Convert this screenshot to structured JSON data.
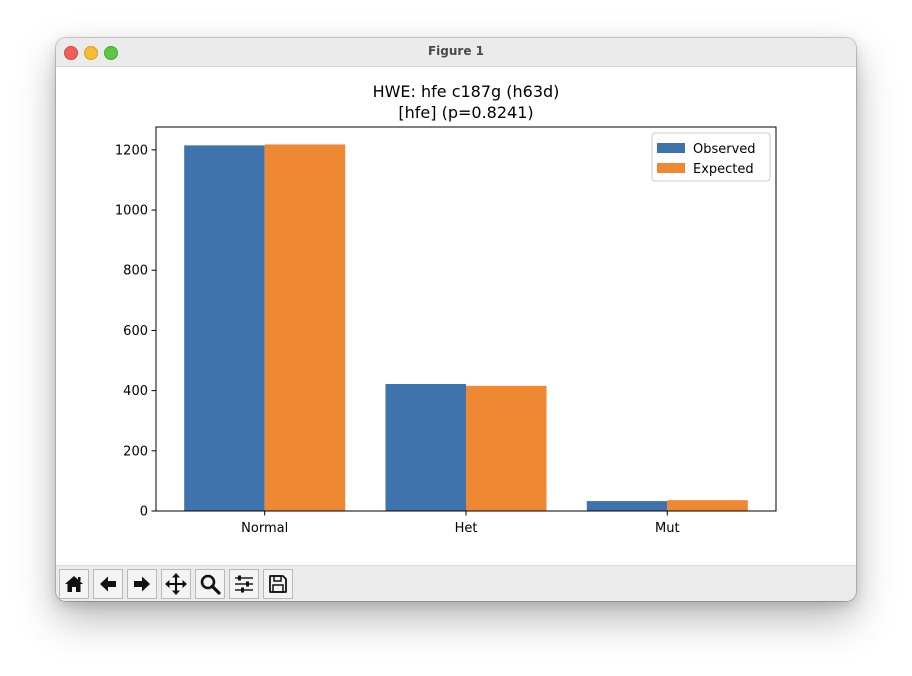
{
  "window": {
    "title": "Figure 1"
  },
  "toolbar": {
    "buttons": [
      {
        "name": "home",
        "icon": "home-icon"
      },
      {
        "name": "back",
        "icon": "arrow-left-icon"
      },
      {
        "name": "forward",
        "icon": "arrow-right-icon"
      },
      {
        "name": "pan",
        "icon": "move-icon"
      },
      {
        "name": "zoom",
        "icon": "magnifier-icon"
      },
      {
        "name": "configure",
        "icon": "sliders-icon"
      },
      {
        "name": "save",
        "icon": "floppy-disk-icon"
      }
    ]
  },
  "chart_data": {
    "type": "bar",
    "title": "HWE: hfe c187g (h63d)",
    "subtitle": "[hfe] (p=0.8241)",
    "categories": [
      "Normal",
      "Het",
      "Mut"
    ],
    "series": [
      {
        "name": "Observed",
        "values": [
          1215,
          422,
          33
        ],
        "color": "#3f73ae"
      },
      {
        "name": "Expected",
        "values": [
          1218,
          416,
          36
        ],
        "color": "#ef8832"
      }
    ],
    "ylim": [
      0,
      1276
    ],
    "yticks": [
      0,
      200,
      400,
      600,
      800,
      1000,
      1200
    ],
    "xlabel": "",
    "ylabel": "",
    "grid": false,
    "legend": "top-right"
  }
}
